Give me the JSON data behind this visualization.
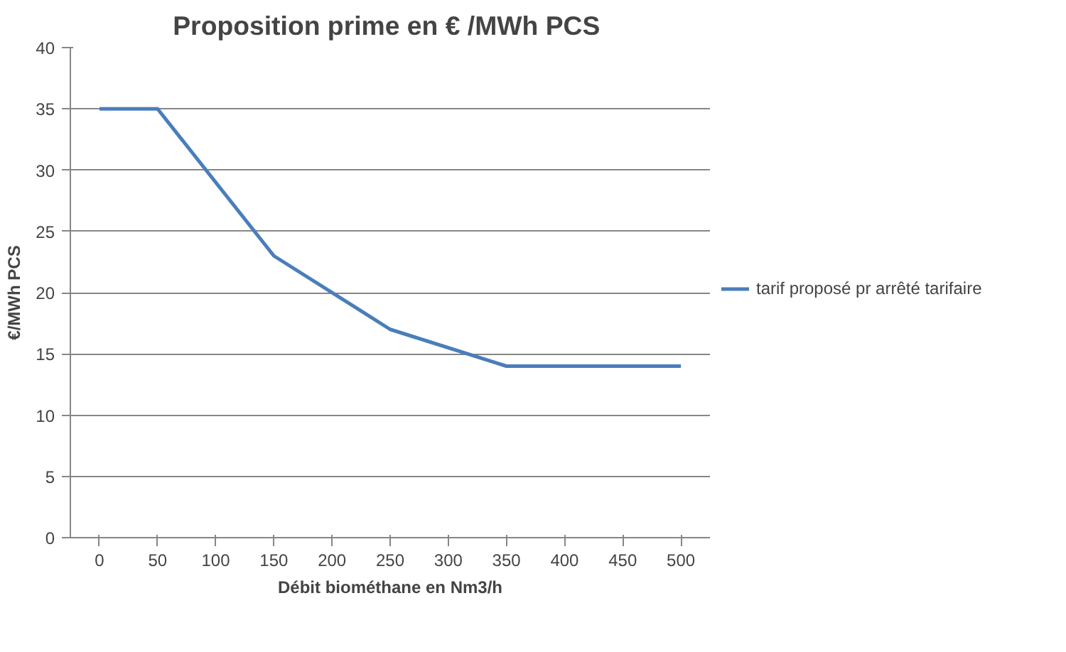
{
  "chart_data": {
    "type": "line",
    "title": "Proposition  prime en € /MWh PCS",
    "xlabel": "Débit biométhane en Nm3/h",
    "ylabel": "€/MWh PCS",
    "x": [
      0,
      50,
      150,
      250,
      350,
      500
    ],
    "series": [
      {
        "name": "tarif proposé pr arrêté tarifaire",
        "color": "#4a7ebb",
        "values": [
          35,
          35,
          23,
          17,
          14,
          14
        ]
      }
    ],
    "xlim": [
      -25,
      525
    ],
    "xticks": [
      0,
      50,
      100,
      150,
      200,
      250,
      300,
      350,
      400,
      450,
      500
    ],
    "ylim": [
      0,
      40
    ],
    "yticks": [
      0,
      5,
      10,
      15,
      20,
      25,
      30,
      35,
      40
    ],
    "grid": "y",
    "legend": "right",
    "marker": "none",
    "line_style": "solid"
  }
}
